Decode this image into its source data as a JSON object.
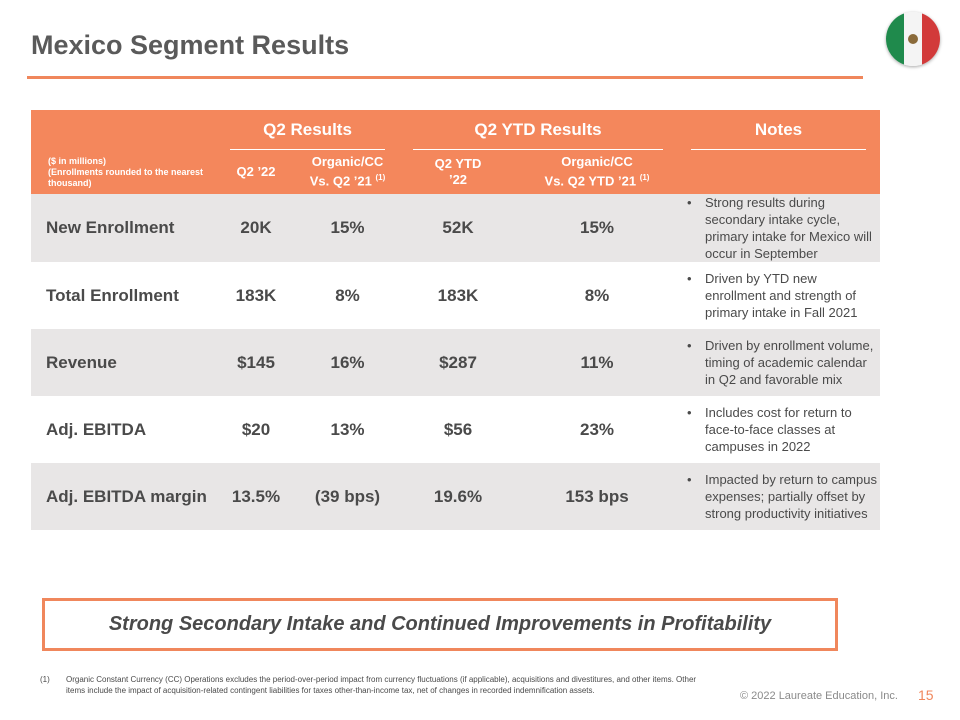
{
  "title": "Mexico Segment Results",
  "flag": {
    "icon": "mexico-flag-icon",
    "colors": [
      "#1f8a4c",
      "#f4f4f4",
      "#d23a3a"
    ]
  },
  "table": {
    "group_headers": {
      "q2": "Q2 Results",
      "ytd": "Q2 YTD Results",
      "notes": "Notes"
    },
    "unit_note_line1": "($ in millions)",
    "unit_note_line2": "(Enrollments rounded to the nearest thousand)",
    "columns": {
      "q2_22": "Q2 ’22",
      "organic_q2_line1": "Organic/CC",
      "organic_q2_line2": "Vs. Q2 ’21",
      "q2_ytd_line1": "Q2 YTD",
      "q2_ytd_line2": "’22",
      "organic_ytd_line1": "Organic/CC",
      "organic_ytd_line2": "Vs. Q2 YTD ’21",
      "footnote_ref": "(1)"
    },
    "rows": [
      {
        "label": "New Enrollment",
        "q2": "20K",
        "q2_cc": "15%",
        "ytd": "52K",
        "ytd_cc": "15%",
        "note": "Strong results during secondary intake cycle, primary intake for Mexico will occur in September"
      },
      {
        "label": "Total Enrollment",
        "q2": "183K",
        "q2_cc": "8%",
        "ytd": "183K",
        "ytd_cc": "8%",
        "note": "Driven by YTD new enrollment and strength of primary intake in Fall 2021"
      },
      {
        "label": "Revenue",
        "q2": "$145",
        "q2_cc": "16%",
        "ytd": "$287",
        "ytd_cc": "11%",
        "note": "Driven by enrollment volume, timing of academic calendar in Q2 and favorable mix"
      },
      {
        "label": "Adj. EBITDA",
        "q2": "$20",
        "q2_cc": "13%",
        "ytd": "$56",
        "ytd_cc": "23%",
        "note": "Includes cost for return to face-to-face classes at campuses in 2022"
      },
      {
        "label": "Adj. EBITDA margin",
        "q2": "13.5%",
        "q2_cc": "(39 bps)",
        "ytd": "19.6%",
        "ytd_cc": "153 bps",
        "note": "Impacted by return to campus expenses; partially offset by strong productivity initiatives"
      }
    ]
  },
  "banner": "Strong Secondary Intake and Continued Improvements in Profitability",
  "footnote": {
    "number": "(1)",
    "text": "Organic Constant Currency (CC) Operations excludes the period-over-period impact from currency fluctuations (if applicable), acquisitions and divestitures, and other items. Other items include the impact of acquisition-related contingent liabilities for taxes other-than-income tax, net of changes in recorded indemnification assets."
  },
  "copyright": "© 2022 Laureate Education, Inc.",
  "page_number": "15",
  "colors": {
    "accent": "#f4875c",
    "row_shade": "#e8e6e6",
    "text": "#4a4a4a"
  }
}
